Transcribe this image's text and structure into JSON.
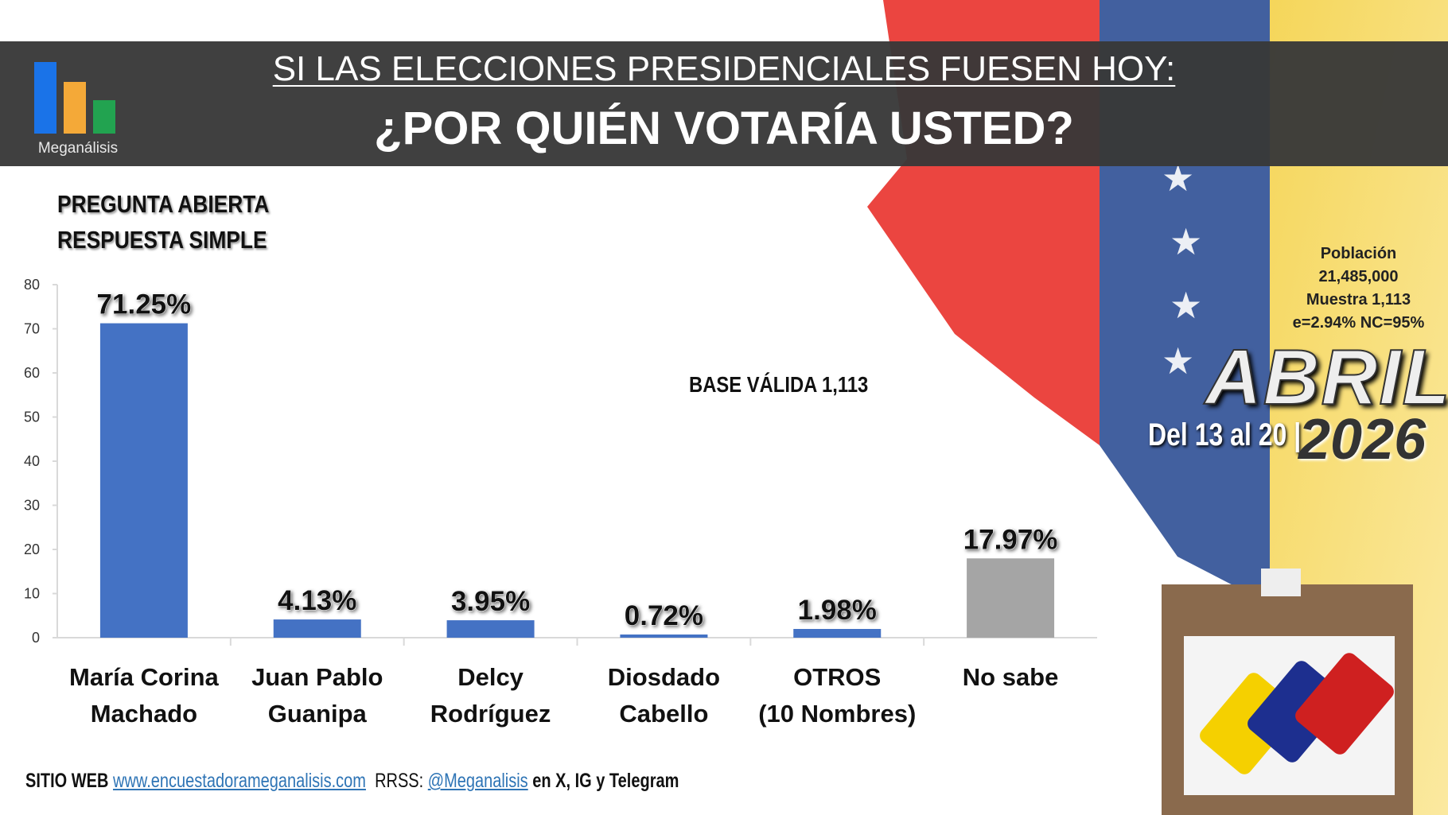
{
  "header": {
    "logo_text": "Meganálisis",
    "title_line1": "SI LAS ELECCIONES PRESIDENCIALES FUESEN HOY:",
    "title_line2": "¿POR QUIÉN VOTARÍA USTED?"
  },
  "subtitle": {
    "line1": "PREGUNTA  ABIERTA",
    "line2": "RESPUESTA SIMPLE"
  },
  "base_label": "BASE VÁLIDA 1,113",
  "info": {
    "poblacion_label": "Población",
    "poblacion_value": "21,485,000",
    "muestra": "Muestra 1,113",
    "error": "e=2.94%  NC=95%"
  },
  "period": {
    "month": "ABRIL",
    "dates": "Del 13 al 20 |",
    "year": "2026"
  },
  "footer": {
    "site_label": "SITIO WEB",
    "site_url": "www.encuestadorameganalisis.com",
    "rrss_label": "RRSS:",
    "handle": "@Meganalisis",
    "networks": "en X, IG y Telegram"
  },
  "colors": {
    "bar": "#4472c4",
    "no_sabe": "#a5a5a5",
    "header": "#383838"
  },
  "chart_data": {
    "type": "bar",
    "categories": [
      [
        "María Corina",
        "Machado"
      ],
      [
        "Juan Pablo",
        "Guanipa"
      ],
      [
        "Delcy",
        "Rodríguez"
      ],
      [
        "Diosdado",
        "Cabello"
      ],
      [
        "OTROS",
        "(10 Nombres)"
      ],
      [
        "No sabe",
        ""
      ]
    ],
    "values": [
      71.25,
      4.13,
      3.95,
      0.72,
      1.98,
      17.97
    ],
    "data_labels": [
      "71.25%",
      "4.13%",
      "3.95%",
      "0.72%",
      "1.98%",
      "17.97%"
    ],
    "yticks": [
      "0",
      "10",
      "20",
      "30",
      "40",
      "50",
      "60",
      "70",
      "80"
    ],
    "ylim": [
      0,
      80
    ],
    "grid": false,
    "bar_colors": [
      "#4472c4",
      "#4472c4",
      "#4472c4",
      "#4472c4",
      "#4472c4",
      "#a5a5a5"
    ]
  }
}
